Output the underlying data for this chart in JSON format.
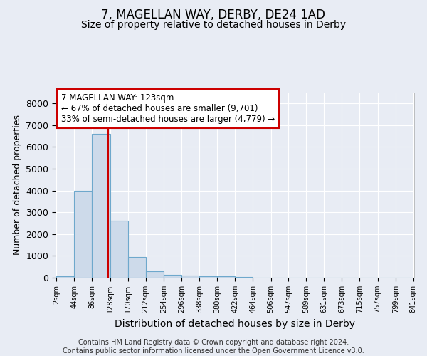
{
  "title": "7, MAGELLAN WAY, DERBY, DE24 1AD",
  "subtitle": "Size of property relative to detached houses in Derby",
  "xlabel": "Distribution of detached houses by size in Derby",
  "ylabel": "Number of detached properties",
  "footnote": "Contains HM Land Registry data © Crown copyright and database right 2024.\nContains public sector information licensed under the Open Government Licence v3.0.",
  "bin_starts": [
    2,
    44,
    86,
    128,
    170,
    212,
    254,
    296,
    338,
    380,
    422,
    464,
    506,
    547,
    589,
    631,
    673,
    715,
    757,
    799
  ],
  "bin_width": 42,
  "bin_labels": [
    "2sqm",
    "44sqm",
    "86sqm",
    "128sqm",
    "170sqm",
    "212sqm",
    "254sqm",
    "296sqm",
    "338sqm",
    "380sqm",
    "422sqm",
    "464sqm",
    "506sqm",
    "547sqm",
    "589sqm",
    "631sqm",
    "673sqm",
    "715sqm",
    "757sqm",
    "799sqm",
    "841sqm"
  ],
  "bar_values": [
    70,
    3980,
    6600,
    2620,
    960,
    310,
    130,
    110,
    70,
    55,
    45,
    0,
    0,
    0,
    0,
    0,
    0,
    0,
    0,
    0
  ],
  "bar_color": "#cddaea",
  "bar_edge_color": "#6ea8cc",
  "ylim": [
    0,
    8500
  ],
  "yticks": [
    0,
    1000,
    2000,
    3000,
    4000,
    5000,
    6000,
    7000,
    8000
  ],
  "property_size": 123,
  "property_label": "7 MAGELLAN WAY: 123sqm",
  "annotation_line1": "← 67% of detached houses are smaller (9,701)",
  "annotation_line2": "33% of semi-detached houses are larger (4,779) →",
  "vline_color": "#cc0000",
  "annotation_box_facecolor": "#ffffff",
  "annotation_box_edgecolor": "#cc0000",
  "bg_color": "#e8ecf4",
  "plot_bg_color": "#e8ecf4",
  "grid_color": "#ffffff",
  "title_fontsize": 12,
  "subtitle_fontsize": 10,
  "ylabel_fontsize": 9,
  "xlabel_fontsize": 10,
  "annotation_fontsize": 8.5,
  "footnote_fontsize": 7
}
